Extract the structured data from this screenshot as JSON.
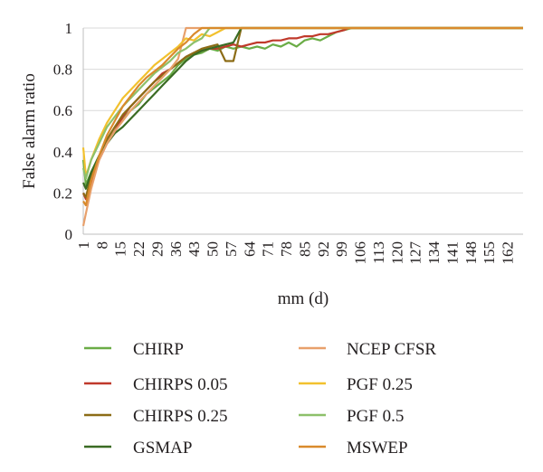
{
  "chart_data": {
    "type": "line",
    "xlabel": "mm (d)",
    "ylabel": "False alarm ratio",
    "xlim": [
      1,
      168
    ],
    "ylim": [
      0,
      1
    ],
    "x_ticks": [
      1,
      8,
      15,
      22,
      29,
      36,
      43,
      50,
      57,
      64,
      71,
      78,
      85,
      92,
      99,
      106,
      113,
      120,
      127,
      134,
      141,
      148,
      155,
      162
    ],
    "y_ticks": [
      0,
      0.2,
      0.4,
      0.6,
      0.8,
      1
    ],
    "y_tick_labels": [
      "0",
      "0.2",
      "0.4",
      "0.6",
      "0.8",
      "1"
    ],
    "grid": "horizontal",
    "legend_position": "bottom",
    "series": [
      {
        "name": "CHIRP",
        "color": "#6aac46",
        "points": [
          [
            1,
            0.36
          ],
          [
            2,
            0.24
          ],
          [
            4,
            0.3
          ],
          [
            7,
            0.38
          ],
          [
            10,
            0.45
          ],
          [
            13,
            0.5
          ],
          [
            16,
            0.56
          ],
          [
            19,
            0.6
          ],
          [
            22,
            0.63
          ],
          [
            25,
            0.68
          ],
          [
            28,
            0.71
          ],
          [
            31,
            0.74
          ],
          [
            34,
            0.77
          ],
          [
            37,
            0.82
          ],
          [
            40,
            0.85
          ],
          [
            43,
            0.87
          ],
          [
            46,
            0.88
          ],
          [
            49,
            0.9
          ],
          [
            52,
            0.89
          ],
          [
            55,
            0.91
          ],
          [
            58,
            0.9
          ],
          [
            61,
            0.91
          ],
          [
            64,
            0.9
          ],
          [
            67,
            0.91
          ],
          [
            70,
            0.9
          ],
          [
            73,
            0.92
          ],
          [
            76,
            0.91
          ],
          [
            79,
            0.93
          ],
          [
            82,
            0.91
          ],
          [
            85,
            0.94
          ],
          [
            88,
            0.95
          ],
          [
            91,
            0.94
          ],
          [
            94,
            0.96
          ],
          [
            97,
            0.98
          ],
          [
            100,
            0.99
          ],
          [
            103,
            1
          ],
          [
            168,
            1
          ]
        ]
      },
      {
        "name": "CHIRPS 0.05",
        "color": "#c0392b",
        "points": [
          [
            1,
            0.2
          ],
          [
            2,
            0.17
          ],
          [
            4,
            0.25
          ],
          [
            7,
            0.36
          ],
          [
            10,
            0.44
          ],
          [
            13,
            0.5
          ],
          [
            16,
            0.57
          ],
          [
            19,
            0.62
          ],
          [
            22,
            0.66
          ],
          [
            25,
            0.7
          ],
          [
            28,
            0.74
          ],
          [
            31,
            0.78
          ],
          [
            34,
            0.8
          ],
          [
            37,
            0.83
          ],
          [
            40,
            0.86
          ],
          [
            43,
            0.88
          ],
          [
            46,
            0.89
          ],
          [
            49,
            0.9
          ],
          [
            52,
            0.9
          ],
          [
            55,
            0.91
          ],
          [
            58,
            0.92
          ],
          [
            61,
            0.91
          ],
          [
            64,
            0.92
          ],
          [
            67,
            0.93
          ],
          [
            70,
            0.93
          ],
          [
            73,
            0.94
          ],
          [
            76,
            0.94
          ],
          [
            79,
            0.95
          ],
          [
            82,
            0.95
          ],
          [
            85,
            0.96
          ],
          [
            88,
            0.96
          ],
          [
            91,
            0.97
          ],
          [
            94,
            0.97
          ],
          [
            97,
            0.98
          ],
          [
            100,
            0.99
          ],
          [
            102,
            1
          ],
          [
            168,
            1
          ]
        ]
      },
      {
        "name": "CHIRPS 0.25",
        "color": "#8c6c16",
        "points": [
          [
            1,
            0.2
          ],
          [
            2,
            0.18
          ],
          [
            4,
            0.28
          ],
          [
            7,
            0.38
          ],
          [
            10,
            0.46
          ],
          [
            13,
            0.52
          ],
          [
            16,
            0.58
          ],
          [
            19,
            0.62
          ],
          [
            22,
            0.66
          ],
          [
            25,
            0.7
          ],
          [
            28,
            0.74
          ],
          [
            31,
            0.77
          ],
          [
            34,
            0.8
          ],
          [
            37,
            0.83
          ],
          [
            40,
            0.86
          ],
          [
            43,
            0.88
          ],
          [
            46,
            0.9
          ],
          [
            49,
            0.91
          ],
          [
            52,
            0.92
          ],
          [
            55,
            0.84
          ],
          [
            58,
            0.84
          ],
          [
            61,
            1
          ],
          [
            168,
            1
          ]
        ]
      },
      {
        "name": "GSMAP",
        "color": "#3a6b23",
        "points": [
          [
            1,
            0.25
          ],
          [
            2,
            0.22
          ],
          [
            4,
            0.3
          ],
          [
            7,
            0.38
          ],
          [
            10,
            0.44
          ],
          [
            13,
            0.49
          ],
          [
            16,
            0.52
          ],
          [
            19,
            0.56
          ],
          [
            22,
            0.6
          ],
          [
            25,
            0.64
          ],
          [
            28,
            0.68
          ],
          [
            31,
            0.72
          ],
          [
            34,
            0.76
          ],
          [
            37,
            0.8
          ],
          [
            40,
            0.84
          ],
          [
            43,
            0.87
          ],
          [
            46,
            0.89
          ],
          [
            49,
            0.9
          ],
          [
            52,
            0.91
          ],
          [
            55,
            0.92
          ],
          [
            58,
            0.93
          ],
          [
            61,
            1
          ],
          [
            168,
            1
          ]
        ]
      },
      {
        "name": "NCEP CFSR",
        "color": "#e8a06b",
        "points": [
          [
            1,
            0.04
          ],
          [
            2,
            0.1
          ],
          [
            4,
            0.22
          ],
          [
            7,
            0.36
          ],
          [
            10,
            0.44
          ],
          [
            13,
            0.5
          ],
          [
            16,
            0.55
          ],
          [
            19,
            0.6
          ],
          [
            22,
            0.64
          ],
          [
            25,
            0.68
          ],
          [
            28,
            0.72
          ],
          [
            31,
            0.76
          ],
          [
            34,
            0.8
          ],
          [
            37,
            0.85
          ],
          [
            40,
            1
          ],
          [
            168,
            1
          ]
        ]
      },
      {
        "name": "PGF 0.25",
        "color": "#f2c12e",
        "points": [
          [
            1,
            0.42
          ],
          [
            2,
            0.28
          ],
          [
            4,
            0.36
          ],
          [
            7,
            0.46
          ],
          [
            10,
            0.54
          ],
          [
            13,
            0.6
          ],
          [
            16,
            0.66
          ],
          [
            19,
            0.7
          ],
          [
            22,
            0.74
          ],
          [
            25,
            0.78
          ],
          [
            28,
            0.82
          ],
          [
            31,
            0.85
          ],
          [
            34,
            0.88
          ],
          [
            37,
            0.91
          ],
          [
            40,
            0.95
          ],
          [
            43,
            0.94
          ],
          [
            46,
            0.97
          ],
          [
            49,
            0.96
          ],
          [
            52,
            0.98
          ],
          [
            55,
            1
          ],
          [
            168,
            1
          ]
        ]
      },
      {
        "name": "PGF 0.5",
        "color": "#8dc06a",
        "points": [
          [
            1,
            0.32
          ],
          [
            2,
            0.27
          ],
          [
            4,
            0.36
          ],
          [
            7,
            0.44
          ],
          [
            10,
            0.52
          ],
          [
            13,
            0.57
          ],
          [
            16,
            0.62
          ],
          [
            19,
            0.66
          ],
          [
            22,
            0.7
          ],
          [
            25,
            0.74
          ],
          [
            28,
            0.78
          ],
          [
            31,
            0.81
          ],
          [
            34,
            0.84
          ],
          [
            37,
            0.88
          ],
          [
            40,
            0.9
          ],
          [
            43,
            0.93
          ],
          [
            46,
            0.95
          ],
          [
            49,
            1
          ],
          [
            168,
            1
          ]
        ]
      },
      {
        "name": "MSWEP",
        "color": "#d98a2c",
        "points": [
          [
            1,
            0.16
          ],
          [
            2,
            0.14
          ],
          [
            4,
            0.26
          ],
          [
            7,
            0.38
          ],
          [
            10,
            0.48
          ],
          [
            13,
            0.55
          ],
          [
            16,
            0.62
          ],
          [
            19,
            0.67
          ],
          [
            22,
            0.72
          ],
          [
            25,
            0.76
          ],
          [
            28,
            0.79
          ],
          [
            31,
            0.82
          ],
          [
            34,
            0.86
          ],
          [
            37,
            0.9
          ],
          [
            40,
            0.93
          ],
          [
            43,
            0.97
          ],
          [
            46,
            1
          ],
          [
            168,
            1
          ]
        ]
      }
    ]
  }
}
